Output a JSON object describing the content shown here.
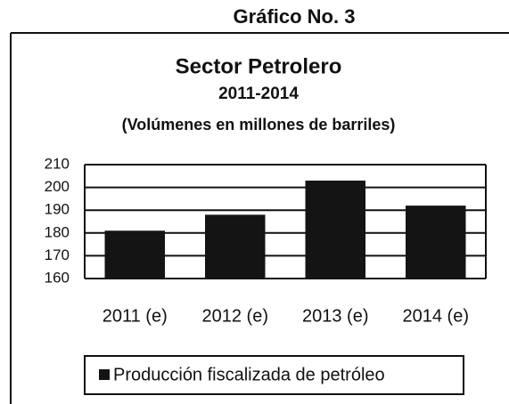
{
  "chart_data": {
    "type": "bar",
    "caption": "Gráfico No. 3",
    "title": "Sector Petrolero",
    "subtitle": "2011-2014",
    "unit_label": "(Volúmenes en millones de barriles)",
    "categories": [
      "2011 (e)",
      "2012 (e)",
      "2013 (e)",
      "2014 (e)"
    ],
    "series": [
      {
        "name": "Producción fiscalizada de petróleo",
        "color": "#141414",
        "values": [
          181,
          188,
          203,
          192
        ]
      }
    ],
    "ylim": [
      160,
      210
    ],
    "yticks": [
      160,
      170,
      180,
      190,
      200,
      210
    ],
    "grid": true,
    "legend": "bottom"
  }
}
